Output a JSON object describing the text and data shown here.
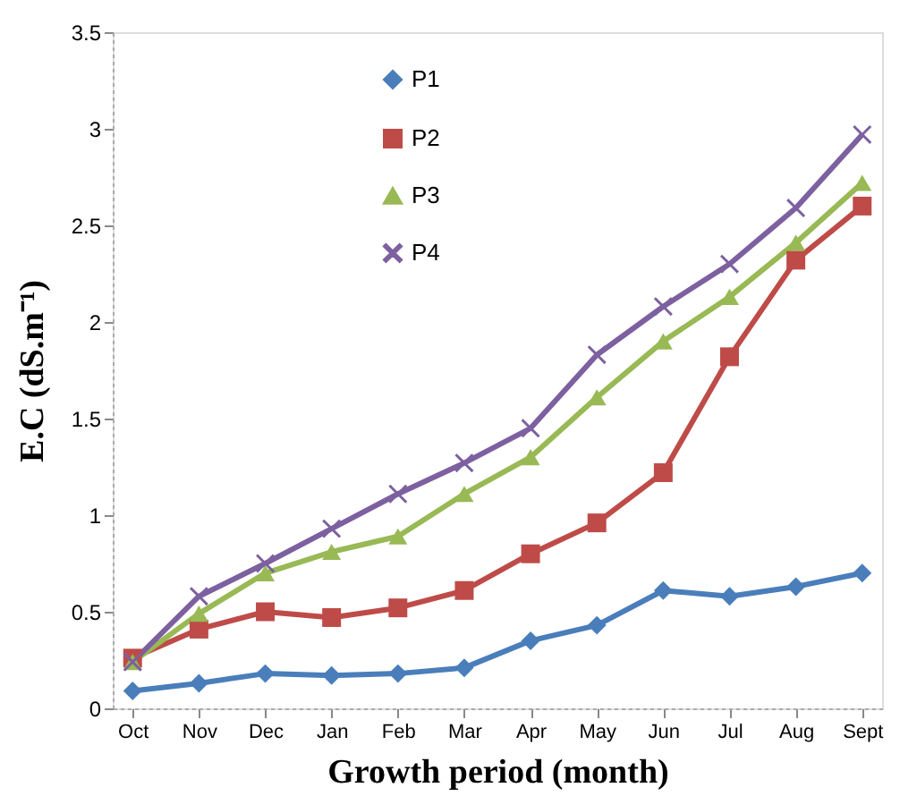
{
  "chart_data": {
    "type": "line",
    "xlabel": "Growth period (month)",
    "ylabel": "E.C (dS.m⁻¹)",
    "categories": [
      "Oct",
      "Nov",
      "Dec",
      "Jan",
      "Feb",
      "Mar",
      "Apr",
      "May",
      "Jun",
      "Jul",
      "Aug",
      "Sept"
    ],
    "series": [
      {
        "name": "P1",
        "color": "#4a7ebb",
        "marker": "diamond",
        "values": [
          0.09,
          0.13,
          0.18,
          0.17,
          0.18,
          0.21,
          0.35,
          0.43,
          0.61,
          0.58,
          0.63,
          0.7
        ]
      },
      {
        "name": "P2",
        "color": "#be4b48",
        "marker": "square",
        "values": [
          0.26,
          0.41,
          0.5,
          0.47,
          0.52,
          0.61,
          0.8,
          0.96,
          1.22,
          1.82,
          2.32,
          2.6
        ]
      },
      {
        "name": "P3",
        "color": "#98b954",
        "marker": "triangle",
        "values": [
          0.24,
          0.49,
          0.7,
          0.81,
          0.89,
          1.11,
          1.3,
          1.61,
          1.9,
          2.13,
          2.41,
          2.72
        ]
      },
      {
        "name": "P4",
        "color": "#7d60a0",
        "marker": "cross",
        "values": [
          0.24,
          0.58,
          0.75,
          0.93,
          1.11,
          1.27,
          1.45,
          1.83,
          2.08,
          2.3,
          2.59,
          2.97
        ]
      }
    ],
    "ylim": [
      0,
      3.5
    ],
    "yticks": [
      0,
      0.5,
      1,
      1.5,
      2,
      2.5,
      3,
      3.5
    ],
    "grid": false,
    "legend": "top",
    "line_style": "solid"
  }
}
